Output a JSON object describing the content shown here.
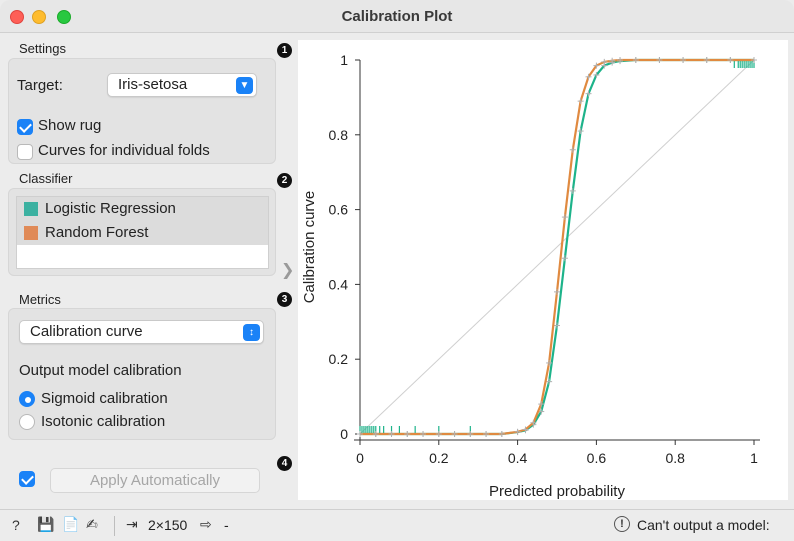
{
  "window": {
    "title": "Calibration Plot"
  },
  "settings": {
    "section_label": "Settings",
    "badge": "1",
    "target_label": "Target:",
    "target_value": "Iris-setosa",
    "show_rug_label": "Show rug",
    "show_rug_checked": true,
    "folds_label": "Curves for individual folds",
    "folds_checked": false
  },
  "classifier": {
    "section_label": "Classifier",
    "badge": "2",
    "items": [
      {
        "label": "Logistic Regression",
        "color": "#3cb1a1"
      },
      {
        "label": "Random Forest",
        "color": "#e08a57"
      }
    ]
  },
  "metrics": {
    "section_label": "Metrics",
    "badge": "3",
    "selected_metric": "Calibration curve",
    "output_label": "Output model calibration",
    "options": [
      {
        "label": "Sigmoid calibration",
        "selected": true
      },
      {
        "label": "Isotonic calibration",
        "selected": false
      }
    ]
  },
  "apply": {
    "badge": "4",
    "auto_checked": true,
    "label": "Apply Automatically"
  },
  "status": {
    "data_size": "2×150",
    "output_value": "-",
    "warning": "Can't output a model:"
  },
  "chart_data": {
    "type": "line",
    "title": "",
    "xlabel": "Predicted probability",
    "ylabel": "Calibration curve",
    "xlim": [
      0,
      1
    ],
    "ylim": [
      0,
      1
    ],
    "xticks": [
      "0",
      "0.2",
      "0.4",
      "0.6",
      "0.8",
      "1"
    ],
    "yticks": [
      "0",
      "0.2",
      "0.4",
      "0.6",
      "0.8",
      "1"
    ],
    "grid": false,
    "series": [
      {
        "color": "#1db38a",
        "x": [
          0,
          0.04,
          0.08,
          0.12,
          0.16,
          0.2,
          0.24,
          0.28,
          0.32,
          0.36,
          0.4,
          0.42,
          0.44,
          0.46,
          0.48,
          0.5,
          0.52,
          0.54,
          0.56,
          0.58,
          0.6,
          0.62,
          0.64,
          0.66,
          0.7,
          0.76,
          0.82,
          0.88,
          0.94,
          1.0
        ],
        "y": [
          0,
          0,
          0,
          0,
          0,
          0,
          0,
          0,
          0,
          0,
          0.005,
          0.01,
          0.025,
          0.06,
          0.14,
          0.29,
          0.47,
          0.65,
          0.81,
          0.91,
          0.96,
          0.985,
          0.993,
          0.997,
          1,
          1,
          1,
          1,
          1,
          1
        ]
      },
      {
        "color": "#e08a40",
        "x": [
          0,
          0.04,
          0.08,
          0.12,
          0.16,
          0.2,
          0.24,
          0.28,
          0.32,
          0.36,
          0.4,
          0.42,
          0.44,
          0.46,
          0.48,
          0.5,
          0.52,
          0.54,
          0.56,
          0.58,
          0.6,
          0.62,
          0.64,
          0.66,
          0.7,
          0.76,
          0.82,
          0.88,
          0.94,
          1.0
        ],
        "y": [
          0,
          0,
          0,
          0,
          0,
          0,
          0,
          0,
          0,
          0,
          0.006,
          0.012,
          0.03,
          0.08,
          0.19,
          0.38,
          0.58,
          0.76,
          0.89,
          0.955,
          0.985,
          0.995,
          0.998,
          1,
          1,
          1,
          1,
          1,
          1,
          1
        ]
      }
    ],
    "rug": {
      "color": "#1db38a",
      "bottom_x": [
        0.0,
        0.005,
        0.01,
        0.015,
        0.02,
        0.025,
        0.03,
        0.035,
        0.04,
        0.05,
        0.06,
        0.08,
        0.1,
        0.14,
        0.2,
        0.28
      ],
      "top_x": [
        0.95,
        0.96,
        0.965,
        0.97,
        0.975,
        0.98,
        0.985,
        0.99,
        0.995,
        1.0
      ]
    },
    "diagonal": true
  }
}
